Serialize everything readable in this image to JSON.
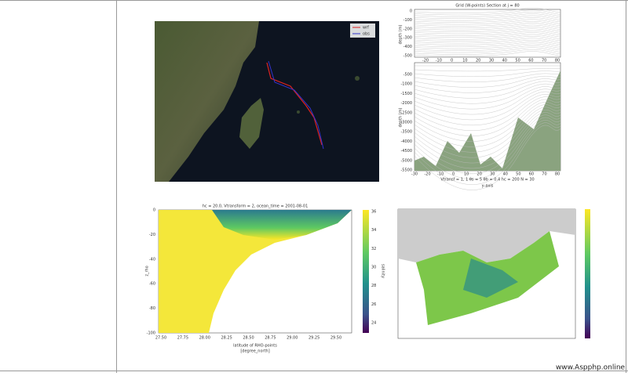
{
  "figures": {
    "map": {
      "legend": [
        "wrf",
        "obs"
      ]
    },
    "section": {
      "title": "Grid (W-points) Section at  j = 80",
      "top_yticks": [
        "0",
        "-100",
        "-200",
        "-300",
        "-400",
        "-500"
      ],
      "top_xticks": [
        "-20",
        "-10",
        "0",
        "10",
        "20",
        "30",
        "40",
        "50",
        "60",
        "70",
        "80"
      ],
      "ylabel": "depth (m)",
      "bottom_yticks": [
        "-500",
        "-1000",
        "-1500",
        "-2000",
        "-2500",
        "-3000",
        "-3500",
        "-4000",
        "-4500",
        "-5000",
        "-5500"
      ],
      "bottom_xticks": [
        "-30",
        "-20",
        "-10",
        "0",
        "10",
        "20",
        "30",
        "40",
        "50",
        "60",
        "70",
        "80"
      ],
      "caption": "Vtransf = 1, 1   θs = 5   θb = 0.4   hc = 200   N = 30",
      "xlabel": "y-axis"
    },
    "salinity": {
      "title": "hc = 20.0, Vtransform = 2, ocean_time = 2001-08-01",
      "yticks": [
        "0",
        "-20",
        "-40",
        "-60",
        "-80",
        "-100"
      ],
      "xticks": [
        "27.50",
        "27.75",
        "28.00",
        "28.25",
        "28.50",
        "28.75",
        "29.00",
        "29.25",
        "29.50"
      ],
      "ylabel": "z_rho",
      "xlabel": [
        "latitude of RHO-points",
        "[degree_north]"
      ],
      "cbar_ticks": [
        "36",
        "34",
        "32",
        "30",
        "28",
        "26",
        "24"
      ],
      "cbar_label": "salinity"
    }
  },
  "watermark": "www.Aspphp.online"
}
